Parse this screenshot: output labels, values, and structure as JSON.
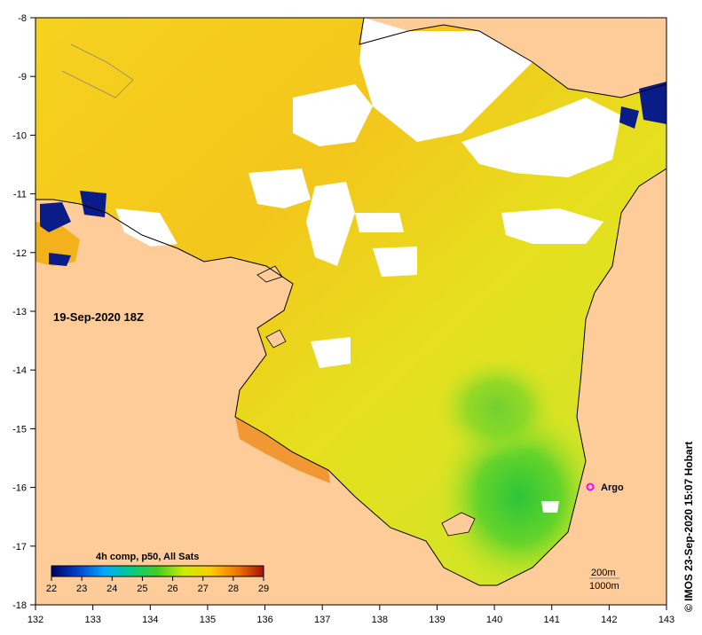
{
  "map": {
    "date_label": "19-Sep-2020 18Z",
    "credit": "© IMOS 23-Sep-2020 15:07 Hobart",
    "x_ticks": [
      "132",
      "133",
      "134",
      "135",
      "136",
      "137",
      "138",
      "139",
      "140",
      "141",
      "142",
      "143"
    ],
    "y_ticks": [
      "-8",
      "-9",
      "-10",
      "-11",
      "-12",
      "-13",
      "-14",
      "-15",
      "-16",
      "-17",
      "-18"
    ],
    "x_range": [
      132,
      143
    ],
    "y_range": [
      -18,
      -8
    ],
    "land_color": "#fdcc98",
    "cloud_color": "#ffffff"
  },
  "colorbar": {
    "title": "4h comp, p50, All Sats",
    "ticks": [
      "22",
      "23",
      "24",
      "25",
      "26",
      "27",
      "28",
      "29"
    ],
    "stops": [
      "#000066",
      "#0044cc",
      "#00aaff",
      "#00cc88",
      "#44cc22",
      "#ccee00",
      "#ffcc00",
      "#ee7700",
      "#aa1100"
    ]
  },
  "argo": {
    "label": "Argo",
    "lon": 141.7,
    "lat": -16.0,
    "color": "#ff00ff"
  },
  "contours": {
    "label_200": "200m",
    "label_1000": "1000m"
  }
}
